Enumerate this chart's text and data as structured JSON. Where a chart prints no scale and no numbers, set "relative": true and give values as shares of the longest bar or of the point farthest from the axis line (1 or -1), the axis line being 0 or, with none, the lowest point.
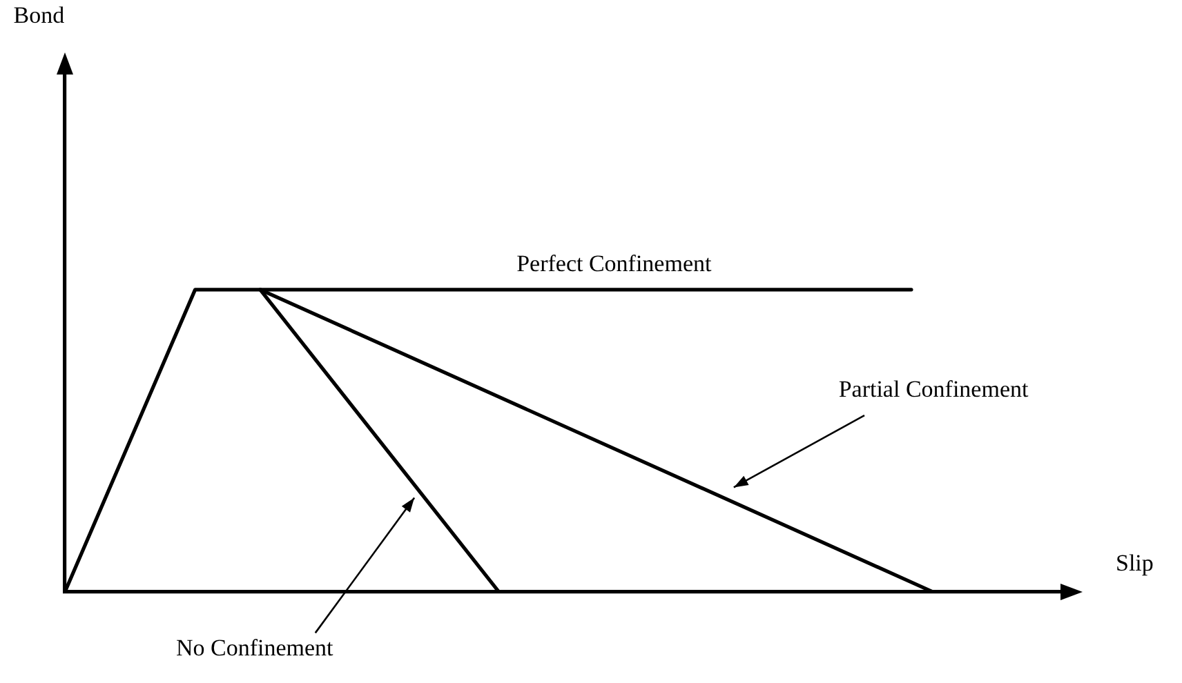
{
  "chart_data": {
    "type": "line",
    "relative": true,
    "xlabel": "Slip",
    "legend": false,
    "grid": false,
    "marker": "none",
    "line_style": "solid",
    "categories": [
      null,
      null,
      null,
      null,
      null,
      null,
      null,
      null,
      null,
      null,
      null,
      null,
      null,
      null,
      null,
      null,
      null,
      null,
      null,
      null,
      null,
      null,
      null,
      null,
      null,
      null,
      null,
      null,
      null,
      null,
      null,
      null,
      null,
      null,
      null,
      null,
      null,
      null,
      null,
      null,
      null,
      null,
      null,
      null,
      null,
      null,
      null
    ],
    "series": [
      {
        "color": "#000000",
        "values": [
          0,
          null,
          null,
          null,
          null,
          null,
          1,
          null,
          null,
          null,
          null,
          null,
          null,
          null,
          null,
          null,
          null,
          null,
          null,
          null,
          null,
          null,
          null,
          null,
          null,
          null,
          null,
          null,
          null,
          null,
          null,
          null,
          null,
          null,
          null,
          null,
          null,
          null,
          null,
          1,
          null,
          null,
          null,
          null,
          null,
          null,
          null
        ]
      },
      {
        "color": "#000000",
        "values": [
          null,
          null,
          null,
          null,
          null,
          null,
          null,
          null,
          null,
          1,
          null,
          null,
          null,
          null,
          null,
          null,
          null,
          null,
          null,
          null,
          0,
          null,
          null,
          null,
          null,
          null,
          null,
          null,
          null,
          null,
          null,
          null,
          null,
          null,
          null,
          null,
          null,
          null,
          null,
          null,
          null,
          null,
          null,
          null,
          null,
          null,
          null
        ]
      },
      {
        "color": "#000000",
        "values": [
          null,
          null,
          null,
          null,
          null,
          null,
          null,
          null,
          null,
          1,
          null,
          null,
          null,
          null,
          null,
          null,
          null,
          null,
          null,
          null,
          null,
          null,
          null,
          null,
          null,
          null,
          null,
          null,
          null,
          null,
          null,
          null,
          null,
          null,
          null,
          null,
          null,
          null,
          null,
          null,
          0,
          null,
          null,
          null,
          null,
          null,
          null
        ]
      }
    ],
    "annotations": [
      "Bond",
      "Perfect Confinement",
      "Partial Confinement",
      "No Confinement"
    ]
  }
}
